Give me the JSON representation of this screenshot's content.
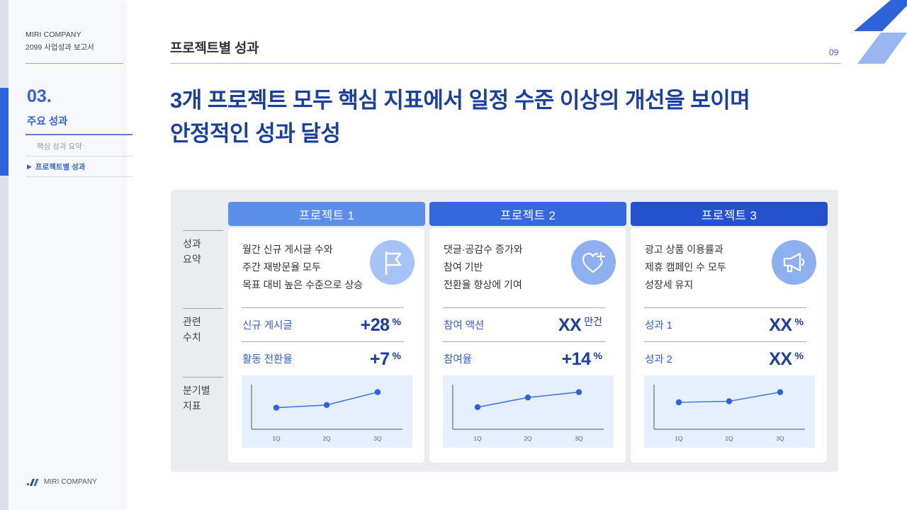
{
  "sidebar": {
    "company": "MIRI COMPANY",
    "report": "2099 사업성과 보고서",
    "section_number": "03.",
    "section_title": "주요 성과",
    "items": [
      {
        "label": "핵심 성과 요약",
        "active": false
      },
      {
        "label": "프로젝트별 성과",
        "active": true,
        "marker": "▶"
      }
    ],
    "footer_logo": "MIRI COMPANY"
  },
  "header": {
    "title": "프로젝트별 성과",
    "page_number": "09"
  },
  "headline": {
    "line1": "3개 프로젝트 모두 핵심 지표에서 일정 수준 이상의 개선을 보이며",
    "line2": "안정적인 성과 달성"
  },
  "row_labels": {
    "summary": [
      "성과",
      "요약"
    ],
    "metrics": [
      "관련",
      "수치"
    ],
    "quarterly": [
      "분기별",
      "지표"
    ]
  },
  "colors": {
    "brand_blue": "#2f63da",
    "headline_navy": "#1b3f9e",
    "project1_header": "#5b8ee8",
    "project2_header": "#3568dc",
    "project3_header": "#2452cf",
    "icon_circle": "#a6c3f5",
    "chart_bg": "#e6effd",
    "panel_bg": "#ebecf0"
  },
  "projects": [
    {
      "title": "프로젝트 1",
      "icon": "flag-icon",
      "summary": [
        "월간 신규 게시글 수와",
        "주간 재방문율 모두",
        "목표 대비 높은 수준으로 상승"
      ],
      "metrics": [
        {
          "label": "신규 게시글",
          "value": "+28",
          "unit": "%"
        },
        {
          "label": "활동 전환율",
          "value": "+7",
          "unit": "%"
        }
      ]
    },
    {
      "title": "프로젝트 2",
      "icon": "heart-plus-icon",
      "summary": [
        "댓글·공감수 증가와",
        "참여 기반",
        "전환율 향상에 기여"
      ],
      "metrics": [
        {
          "label": "참여 액션",
          "value": "XX",
          "unit": "만건"
        },
        {
          "label": "참여율",
          "value": "+14",
          "unit": "%"
        }
      ]
    },
    {
      "title": "프로젝트 3",
      "icon": "megaphone-icon",
      "summary": [
        "광고 상품 이용률과",
        "제휴 캠페인 수 모두",
        "성장세 유지"
      ],
      "metrics": [
        {
          "label": "성과 1",
          "value": "XX",
          "unit": "%"
        },
        {
          "label": "성과 2",
          "value": "XX",
          "unit": "%"
        }
      ]
    }
  ],
  "chart_data": [
    {
      "type": "line",
      "title": "프로젝트 1 분기별 지표",
      "categories": [
        "1Q",
        "2Q",
        "3Q"
      ],
      "values": [
        40,
        45,
        69
      ],
      "xlabel": "",
      "ylabel": "",
      "ylim": [
        0,
        100
      ],
      "grid": false,
      "legend": false
    },
    {
      "type": "line",
      "title": "프로젝트 2 분기별 지표",
      "categories": [
        "1Q",
        "2Q",
        "3Q"
      ],
      "values": [
        41,
        59,
        69
      ],
      "xlabel": "",
      "ylabel": "",
      "ylim": [
        0,
        100
      ],
      "grid": false,
      "legend": false
    },
    {
      "type": "line",
      "title": "프로젝트 3 분기별 지표",
      "categories": [
        "1Q",
        "2Q",
        "3Q"
      ],
      "values": [
        50,
        52,
        69
      ],
      "xlabel": "",
      "ylabel": "",
      "ylim": [
        0,
        100
      ],
      "grid": false,
      "legend": false
    }
  ]
}
